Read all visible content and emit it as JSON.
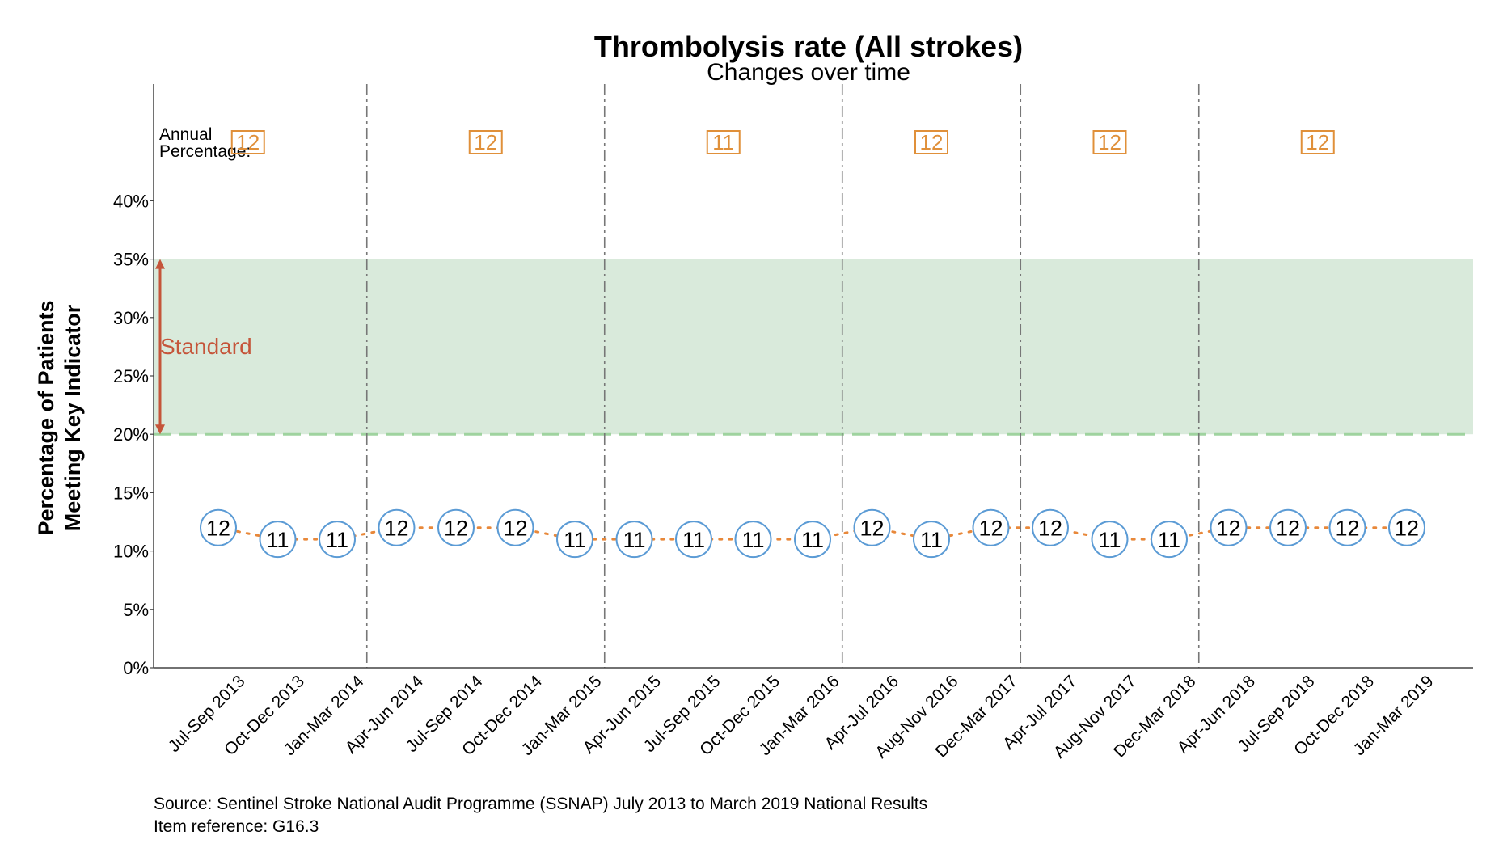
{
  "chart_data": {
    "type": "line",
    "title": "Thrombolysis rate (All strokes)",
    "subtitle": "Changes over time",
    "ylabel_lines": [
      "Percentage of Patients",
      "Meeting Key Indicator"
    ],
    "xlabel": "",
    "ylim": [
      0,
      50
    ],
    "yticks": [
      0,
      5,
      10,
      15,
      20,
      25,
      30,
      35,
      40
    ],
    "ytick_labels": [
      "0%",
      "5%",
      "10%",
      "15%",
      "20%",
      "25%",
      "30%",
      "35%",
      "40%"
    ],
    "categories": [
      "Jul-Sep 2013",
      "Oct-Dec 2013",
      "Jan-Mar 2014",
      "Apr-Jun 2014",
      "Jul-Sep 2014",
      "Oct-Dec 2014",
      "Jan-Mar 2015",
      "Apr-Jun 2015",
      "Jul-Sep 2015",
      "Oct-Dec 2015",
      "Jan-Mar 2016",
      "Apr-Jul 2016",
      "Aug-Nov 2016",
      "Dec-Mar 2017",
      "Apr-Jul 2017",
      "Aug-Nov 2017",
      "Dec-Mar 2018",
      "Apr-Jun 2018",
      "Jul-Sep 2018",
      "Oct-Dec 2018",
      "Jan-Mar 2019"
    ],
    "values": [
      12,
      11,
      11,
      12,
      12,
      12,
      11,
      11,
      11,
      11,
      11,
      12,
      11,
      12,
      12,
      11,
      11,
      12,
      12,
      12,
      12
    ],
    "point_labels": [
      "12",
      "11",
      "11",
      "12",
      "12",
      "12",
      "11",
      "11",
      "11",
      "11",
      "11",
      "12",
      "11",
      "12",
      "12",
      "11",
      "11",
      "12",
      "12",
      "12",
      "12"
    ],
    "grid": false,
    "year_dividers_after_index": [
      2.5,
      6.5,
      10.5,
      13.5,
      16.5
    ],
    "annual_label_lines": [
      "Annual",
      "Percentage:"
    ],
    "annual_percentages": [
      {
        "value": "12",
        "center_index": 0.5
      },
      {
        "value": "12",
        "center_index": 4.5
      },
      {
        "value": "11",
        "center_index": 8.5
      },
      {
        "value": "12",
        "center_index": 12
      },
      {
        "value": "12",
        "center_index": 15
      },
      {
        "value": "12",
        "center_index": 18.5
      }
    ],
    "standard": {
      "label": "Standard",
      "low": 20,
      "high": 35
    },
    "colors": {
      "line": "#e8883a",
      "marker_edge": "#5b9bd5",
      "standard_band": "#d9eadb",
      "standard_dash": "#9fd39f",
      "standard_arrow": "#c5553a",
      "annual": "#e0903a",
      "divider": "#777777",
      "axis": "#444444"
    }
  },
  "footer": {
    "source": "Source: Sentinel Stroke National Audit Programme (SSNAP) July 2013 to March 2019 National Results",
    "item_ref": "Item reference: G16.3"
  }
}
